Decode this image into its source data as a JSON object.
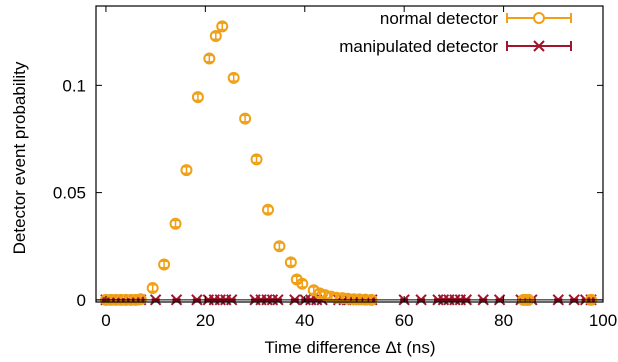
{
  "chart_data": {
    "type": "scatter",
    "xlabel": "Time difference Δt (ns)",
    "ylabel": "Detector event probability",
    "xlim": [
      -2,
      100
    ],
    "ylim": [
      -0.001,
      0.137
    ],
    "xticks": [
      0,
      20,
      40,
      60,
      80,
      100
    ],
    "yticks": [
      0,
      0.05,
      0.1
    ],
    "xtick_labels": [
      "0",
      "20",
      "40",
      "60",
      "80",
      "100"
    ],
    "ytick_labels": [
      "0",
      "0.05",
      "0.1"
    ],
    "grid": false,
    "legend_position": "top-right",
    "series": [
      {
        "name": "normal detector",
        "marker": "circle",
        "color": "#f0a016",
        "x": [
          0,
          1,
          2,
          3,
          4,
          5,
          6,
          7,
          9.4,
          11.7,
          14,
          16.2,
          18.5,
          20.8,
          22.1,
          23.4,
          25.7,
          28,
          30.3,
          32.6,
          34.9,
          37.2,
          38.4,
          39.5,
          41.8,
          43,
          44.1,
          45.3,
          46.4,
          47.6,
          48.7,
          49.9,
          51,
          52.2,
          53.4,
          84,
          84.6,
          85,
          97.6
        ],
        "y": [
          0,
          0,
          0,
          0,
          0,
          0,
          0,
          0.0003,
          0.0055,
          0.0165,
          0.0355,
          0.0605,
          0.0945,
          0.1125,
          0.123,
          0.1275,
          0.1035,
          0.0845,
          0.0655,
          0.042,
          0.025,
          0.0175,
          0.0095,
          0.0075,
          0.0045,
          0.003,
          0.0022,
          0.0015,
          0.001,
          0.0008,
          0.0005,
          0.0003,
          0.0002,
          0.0001,
          0,
          0,
          0,
          0,
          0
        ],
        "error": 0.0015
      },
      {
        "name": "manipulated detector",
        "marker": "x",
        "color": "#a0142d",
        "x": [
          0,
          1.2,
          2.3,
          3.5,
          4.6,
          5.8,
          7,
          10,
          14.2,
          18.3,
          20.6,
          21.8,
          23,
          24.1,
          25.3,
          30,
          31.2,
          32.4,
          33.5,
          34.6,
          38,
          40.1,
          41.2,
          42.4,
          43.5,
          46.8,
          47.9,
          48.9,
          50,
          51.2,
          52.3,
          53.5,
          60,
          63.4,
          66.8,
          67.9,
          69,
          70.2,
          71.3,
          72.5,
          75.9,
          79.2,
          83.5,
          84.6,
          85.7,
          91,
          94.2,
          96.5,
          97.6
        ],
        "y": [
          0,
          0,
          0,
          0,
          0,
          0,
          0,
          0,
          0,
          0,
          0,
          0,
          0,
          0,
          0,
          0,
          0,
          0,
          0,
          0,
          0,
          0,
          0,
          0,
          0,
          0,
          0,
          0,
          0,
          0,
          0,
          0,
          0,
          0,
          0,
          0,
          0,
          0,
          0,
          0,
          0,
          0,
          0,
          0,
          0,
          0,
          0,
          0,
          0
        ],
        "error": 0.0004
      }
    ]
  }
}
